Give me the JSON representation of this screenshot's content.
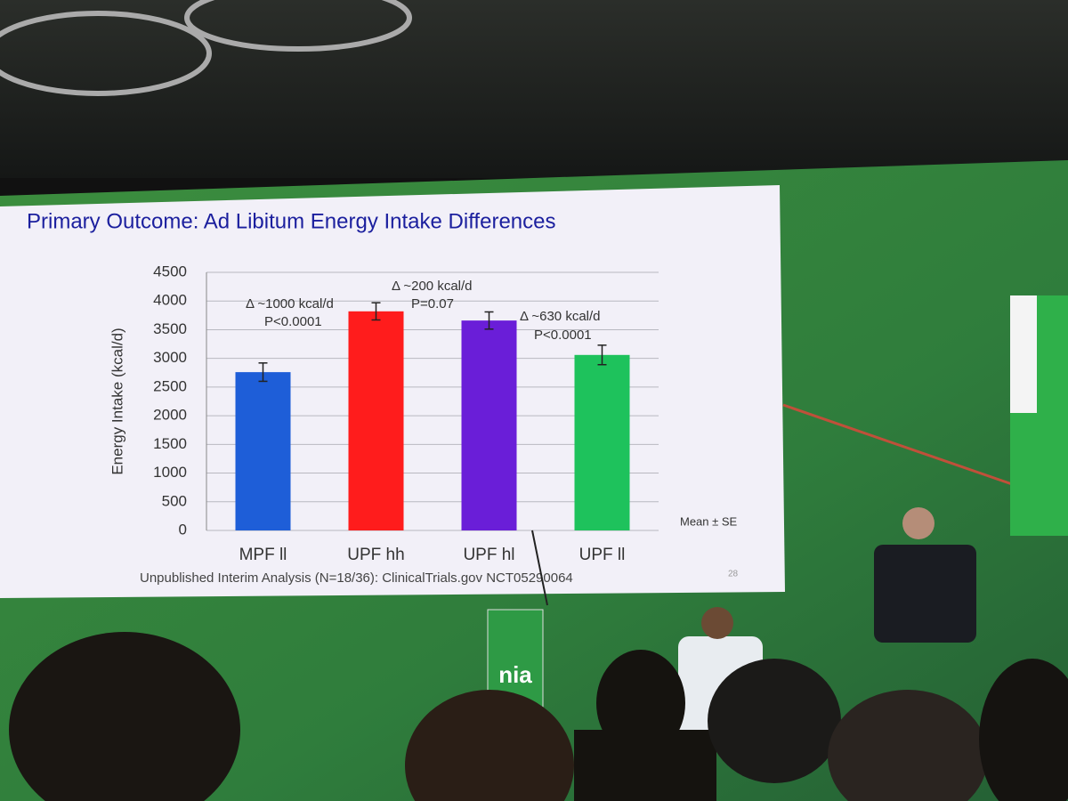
{
  "chart_data": {
    "type": "bar",
    "title": "Primary Outcome: Ad Libitum Energy Intake Differences",
    "y_label": "Energy Intake (kcal/d)",
    "categories": [
      "MPF ll",
      "UPF hh",
      "UPF hl",
      "UPF ll"
    ],
    "values": [
      2760,
      3820,
      3660,
      3060
    ],
    "errors": [
      160,
      150,
      150,
      170
    ],
    "colors": [
      "#1e5ed8",
      "#ff1c1c",
      "#6a1ed8",
      "#1ec25c"
    ],
    "ylim": [
      0,
      4500
    ],
    "yticks": [
      0,
      500,
      1000,
      1500,
      2000,
      2500,
      3000,
      3500,
      4000,
      4500
    ],
    "grid": true,
    "annotations": [
      "Δ ~1000 kcal/d",
      "P<0.0001",
      "Δ ~200 kcal/d",
      "P=0.07",
      "Δ ~630 kcal/d",
      "P<0.0001"
    ],
    "error_note": "Mean ± SE",
    "footnote": "Unpublished Interim Analysis (N=18/36): ClinicalTrials.gov NCT05290064",
    "slide_number": "28"
  },
  "podium_logo": "nia"
}
